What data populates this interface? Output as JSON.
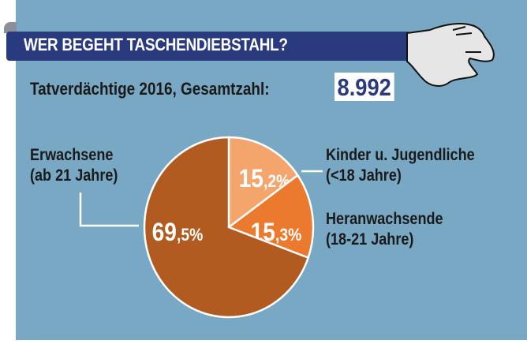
{
  "header": {
    "title": "WER BEGEHT TASCHENDIEBSTAHL?",
    "subtitle": "Tatverdächtige 2016, Gesamtzahl:",
    "total": "8.992"
  },
  "chart_data": {
    "type": "pie",
    "title": "WER BEGEHT TASCHENDIEBSTAHL?",
    "subtitle": "Tatverdächtige 2016, Gesamtzahl: 8.992",
    "start": "top",
    "direction": "clockwise",
    "slices": [
      {
        "label_line1": "Kinder u. Jugendliche",
        "label_line2": "(<18 Jahre)",
        "value": 15.2,
        "value_label": "15,2%",
        "color": "#f4a56c"
      },
      {
        "label_line1": "Heranwachsende",
        "label_line2": "(18-21 Jahre)",
        "value": 15.3,
        "value_label": "15,3%",
        "color": "#ec7a2e"
      },
      {
        "label_line1": "Erwachsene",
        "label_line2": "(ab 21 Jahre)",
        "value": 69.5,
        "value_label": "69,5%",
        "color": "#b15b20"
      }
    ]
  },
  "colors": {
    "background": "#78a8c3",
    "banner": "#2a3a7e"
  },
  "icons": [
    "hand-icon"
  ]
}
